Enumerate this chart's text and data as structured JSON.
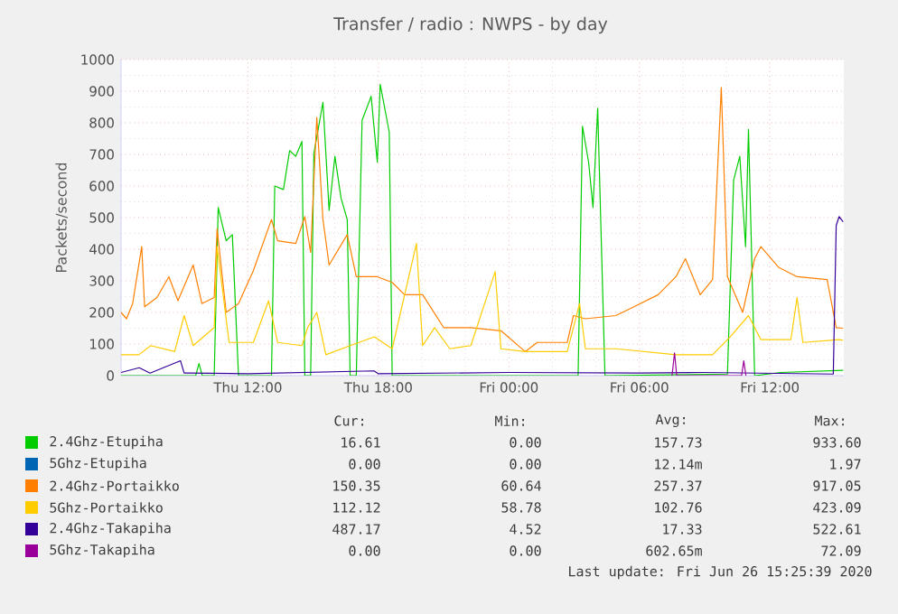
{
  "chart_data": {
    "type": "line",
    "title": "Transfer / radio : NWPS - by day",
    "ylabel": "Packets/second",
    "xlim": [
      "2020-06-25T06:10",
      "2020-06-26T15:24"
    ],
    "xticks": [
      {
        "value": "2020-06-25T12:00",
        "label": "Thu 12:00"
      },
      {
        "value": "2020-06-25T18:00",
        "label": "Thu 18:00"
      },
      {
        "value": "2020-06-26T00:00",
        "label": "Fri 00:00"
      },
      {
        "value": "2020-06-26T06:00",
        "label": "Fri 06:00"
      },
      {
        "value": "2020-06-26T12:00",
        "label": "Fri 12:00"
      }
    ],
    "ylim": [
      0,
      1000
    ],
    "yticks": [
      0,
      100,
      200,
      300,
      400,
      500,
      600,
      700,
      800,
      900,
      1000
    ],
    "grid": true,
    "legend": "bottom",
    "marker": "none",
    "line_style": "solid",
    "series": [
      {
        "name": "2.4Ghz-Etupiha",
        "color": "#00cc00",
        "x": [
          "2020-06-25T06:10",
          "2020-06-25T09:36",
          "2020-06-25T09:45",
          "2020-06-25T09:54",
          "2020-06-25T10:27",
          "2020-06-25T10:38",
          "2020-06-25T11:00",
          "2020-06-25T11:17",
          "2020-06-25T11:34",
          "2020-06-25T13:05",
          "2020-06-25T13:14",
          "2020-06-25T13:38",
          "2020-06-25T13:55",
          "2020-06-25T14:12",
          "2020-06-25T14:29",
          "2020-06-25T14:37",
          "2020-06-25T14:53",
          "2020-06-25T15:02",
          "2020-06-25T15:27",
          "2020-06-25T15:44",
          "2020-06-25T16:00",
          "2020-06-25T16:17",
          "2020-06-25T16:34",
          "2020-06-25T16:42",
          "2020-06-25T16:59",
          "2020-06-25T17:15",
          "2020-06-25T17:40",
          "2020-06-25T17:57",
          "2020-06-25T18:05",
          "2020-06-25T18:30",
          "2020-06-25T18:38",
          "2020-06-26T03:11",
          "2020-06-26T03:23",
          "2020-06-26T03:40",
          "2020-06-26T03:52",
          "2020-06-26T04:05",
          "2020-06-26T04:25",
          "2020-06-26T10:03",
          "2020-06-26T10:20",
          "2020-06-26T10:37",
          "2020-06-26T10:53",
          "2020-06-26T11:01",
          "2020-06-26T11:18",
          "2020-06-26T12:30",
          "2020-06-26T15:22"
        ],
        "values": [
          0,
          0,
          38,
          0,
          0,
          532,
          427,
          446,
          0,
          0,
          600,
          589,
          712,
          694,
          741,
          0,
          0,
          703,
          865,
          523,
          694,
          561,
          494,
          0,
          0,
          808,
          884,
          675,
          922,
          770,
          0,
          0,
          789,
          675,
          532,
          846,
          0,
          5,
          618,
          694,
          408,
          779,
          0,
          10,
          17
        ]
      },
      {
        "name": "5Ghz-Etupiha",
        "color": "#0066b3"
      },
      {
        "name": "2.4Ghz-Portaikko",
        "color": "#ff8000",
        "x": [
          "2020-06-25T06:10",
          "2020-06-25T06:25",
          "2020-06-25T06:42",
          "2020-06-25T07:07",
          "2020-06-25T07:15",
          "2020-06-25T07:49",
          "2020-06-25T08:22",
          "2020-06-25T08:47",
          "2020-06-25T09:29",
          "2020-06-25T09:53",
          "2020-06-25T10:27",
          "2020-06-25T10:35",
          "2020-06-25T11:00",
          "2020-06-25T11:34",
          "2020-06-25T12:15",
          "2020-06-25T13:05",
          "2020-06-25T13:22",
          "2020-06-25T14:12",
          "2020-06-25T14:37",
          "2020-06-25T14:53",
          "2020-06-25T15:10",
          "2020-06-25T15:27",
          "2020-06-25T15:44",
          "2020-06-25T16:34",
          "2020-06-25T16:59",
          "2020-06-25T17:57",
          "2020-06-25T18:38",
          "2020-06-25T19:12",
          "2020-06-25T20:02",
          "2020-06-25T21:00",
          "2020-06-25T22:15",
          "2020-06-25T23:38",
          "2020-06-26T00:45",
          "2020-06-26T01:18",
          "2020-06-26T02:41",
          "2020-06-26T02:58",
          "2020-06-26T03:31",
          "2020-06-26T04:55",
          "2020-06-26T05:45",
          "2020-06-26T06:52",
          "2020-06-26T07:41",
          "2020-06-26T08:07",
          "2020-06-26T08:48",
          "2020-06-26T09:22",
          "2020-06-26T09:46",
          "2020-06-26T10:03",
          "2020-06-26T10:45",
          "2020-06-26T11:18",
          "2020-06-26T11:35",
          "2020-06-26T12:25",
          "2020-06-26T13:15",
          "2020-06-26T14:38",
          "2020-06-26T15:03",
          "2020-06-26T15:22"
        ],
        "values": [
          200,
          180,
          228,
          408,
          218,
          247,
          313,
          237,
          350,
          228,
          247,
          465,
          200,
          228,
          332,
          494,
          427,
          418,
          503,
          390,
          817,
          494,
          350,
          446,
          313,
          313,
          295,
          256,
          256,
          152,
          152,
          142,
          76,
          105,
          105,
          190,
          180,
          190,
          218,
          256,
          313,
          370,
          256,
          304,
          912,
          313,
          200,
          370,
          408,
          342,
          313,
          304,
          152,
          150
        ]
      },
      {
        "name": "5Ghz-Portaikko",
        "color": "#ffcc00",
        "x": [
          "2020-06-25T06:10",
          "2020-06-25T06:59",
          "2020-06-25T07:32",
          "2020-06-25T08:38",
          "2020-06-25T09:04",
          "2020-06-25T09:29",
          "2020-06-25T10:27",
          "2020-06-25T10:35",
          "2020-06-25T11:08",
          "2020-06-25T12:15",
          "2020-06-25T12:57",
          "2020-06-25T13:22",
          "2020-06-25T14:29",
          "2020-06-25T14:45",
          "2020-06-25T15:10",
          "2020-06-25T15:35",
          "2020-06-25T16:42",
          "2020-06-25T17:49",
          "2020-06-25T18:38",
          "2020-06-25T19:45",
          "2020-06-25T20:02",
          "2020-06-25T20:35",
          "2020-06-25T21:17",
          "2020-06-25T22:15",
          "2020-06-25T23:22",
          "2020-06-25T23:38",
          "2020-06-26T00:45",
          "2020-06-26T02:41",
          "2020-06-26T03:15",
          "2020-06-26T03:31",
          "2020-06-26T04:55",
          "2020-06-26T07:41",
          "2020-06-26T09:22",
          "2020-06-26T10:11",
          "2020-06-26T11:01",
          "2020-06-26T11:35",
          "2020-06-26T12:58",
          "2020-06-26T13:15",
          "2020-06-26T13:31",
          "2020-06-26T15:11",
          "2020-06-26T15:22"
        ],
        "values": [
          66,
          66,
          95,
          76,
          190,
          95,
          152,
          408,
          105,
          105,
          237,
          105,
          95,
          152,
          200,
          66,
          95,
          123,
          85,
          418,
          95,
          152,
          85,
          95,
          329,
          85,
          76,
          76,
          228,
          85,
          85,
          66,
          66,
          123,
          190,
          114,
          114,
          247,
          105,
          114,
          112
        ]
      },
      {
        "name": "2.4Ghz-Takapiha",
        "color": "#330099",
        "x": [
          "2020-06-25T06:10",
          "2020-06-25T07:00",
          "2020-06-25T07:30",
          "2020-06-25T08:54",
          "2020-06-25T09:04",
          "2020-06-25T09:18",
          "2020-06-25T12:00",
          "2020-06-25T17:48",
          "2020-06-25T18:00",
          "2020-06-26T00:00",
          "2020-06-26T06:00",
          "2020-06-26T09:00",
          "2020-06-26T14:55",
          "2020-06-26T15:03",
          "2020-06-26T15:11",
          "2020-06-26T15:22"
        ],
        "values": [
          10,
          25,
          8,
          47,
          8,
          8,
          6,
          15,
          6,
          10,
          8,
          10,
          5,
          475,
          503,
          487
        ]
      },
      {
        "name": "5Ghz-Takapiha",
        "color": "#990099",
        "x": [
          "2020-06-26T07:30",
          "2020-06-26T07:37",
          "2020-06-26T07:43",
          "2020-06-26T10:42",
          "2020-06-26T10:48",
          "2020-06-26T10:54"
        ],
        "values": [
          0,
          72,
          0,
          0,
          47,
          0
        ]
      }
    ],
    "annotations": [
      "Cur:",
      "Min:",
      "Avg:",
      "Max:",
      "16.61",
      "0.00",
      "157.73",
      "933.60",
      "0.00",
      "0.00",
      "12.14m",
      "1.97",
      "150.35",
      "60.64",
      "257.37",
      "917.05",
      "112.12",
      "58.78",
      "102.76",
      "423.09",
      "487.17",
      "4.52",
      "17.33",
      "522.61",
      "0.00",
      "0.00",
      "602.65m",
      "72.09",
      "Last update: Fri Jun 26 15:25:39 2020"
    ]
  }
}
